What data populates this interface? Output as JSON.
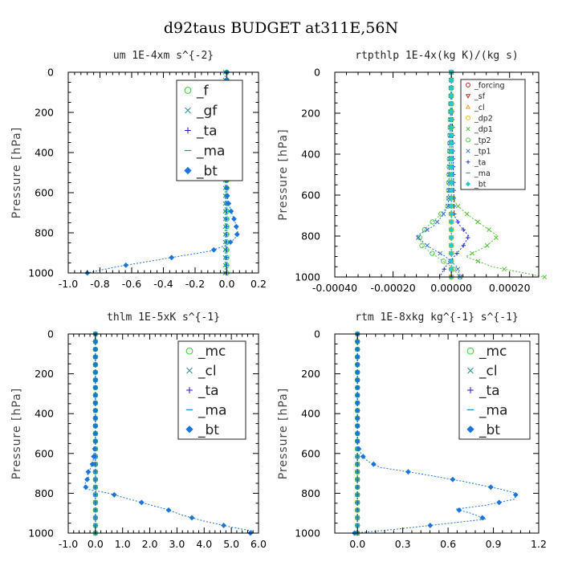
{
  "figure_title": "d92taus  BUDGET at311E,56N",
  "chart_data": [
    {
      "type": "line",
      "title": "um  1E-4xm s^{-2}",
      "ylabel": "Pressure [hPa]",
      "xlim": [
        -1.0,
        0.2
      ],
      "ylim": [
        0,
        1000
      ],
      "xticks": [
        "-1.0",
        "-0.8",
        "-0.6",
        "-0.4",
        "-0.2",
        "0.0",
        "0.2"
      ],
      "xtick_values": [
        -1.0,
        -0.8,
        -0.6,
        -0.4,
        -0.2,
        0.0,
        0.2
      ],
      "yticks": [
        "0",
        "200",
        "400",
        "600",
        "800",
        "1000"
      ],
      "ytick_values": [
        0,
        200,
        400,
        600,
        800,
        1000
      ],
      "legend_size": "large",
      "series": [
        {
          "name": "_f",
          "color": "#33cc33",
          "marker": "circle",
          "pressure": [
            0,
            1000
          ],
          "values": [
            -0.0,
            -0.0
          ]
        },
        {
          "name": "_gf",
          "color": "#2e8b8b",
          "marker": "x",
          "pressure": [
            0,
            1000
          ],
          "values": [
            -0.01,
            -0.01
          ]
        },
        {
          "name": "_ta",
          "color": "#1a1acc",
          "marker": "plus",
          "pressure": [
            0,
            1000
          ],
          "values": [
            0,
            0
          ]
        },
        {
          "name": "_ma",
          "color": "#1a8ccc",
          "marker": "dash",
          "pressure": [
            0,
            1000
          ],
          "values": [
            0,
            0
          ]
        },
        {
          "name": "_bt",
          "color": "#1a75d9",
          "marker": "diamond",
          "pressure": [
            0,
            100,
            200,
            300,
            400,
            500,
            600,
            650,
            700,
            740,
            770,
            800,
            830,
            860,
            890,
            910,
            930,
            950,
            970,
            990,
            1000
          ],
          "values": [
            0.0,
            0.0,
            0.0,
            0.0,
            0.0,
            0.0,
            0.0,
            0.01,
            0.03,
            0.05,
            0.06,
            0.07,
            0.05,
            0.0,
            -0.1,
            -0.25,
            -0.4,
            -0.55,
            -0.7,
            -0.82,
            -0.88
          ]
        }
      ]
    },
    {
      "type": "line",
      "title": "rtpthlp  1E-4x(kg K)/(kg s)",
      "ylabel": "Pressure [hPa]",
      "xlim": [
        -0.0004,
        0.0003
      ],
      "ylim": [
        0,
        1000
      ],
      "xticks": [
        "-0.00040",
        "-0.00020",
        "0.00000",
        "0.00020"
      ],
      "xtick_values": [
        -0.0004,
        -0.0002,
        0.0,
        0.0002
      ],
      "yticks": [
        "0",
        "200",
        "400",
        "600",
        "800",
        "1000"
      ],
      "ytick_values": [
        0,
        200,
        400,
        600,
        800,
        1000
      ],
      "legend_size": "small",
      "series": [
        {
          "name": "_forcing",
          "color": "#cc2222",
          "marker": "circle",
          "pressure": [
            0,
            1000
          ],
          "values": [
            0,
            0
          ]
        },
        {
          "name": "_sf",
          "color": "#cc2222",
          "marker": "triangle-down",
          "pressure": [
            0,
            1000
          ],
          "values": [
            0,
            0
          ]
        },
        {
          "name": "_cl",
          "color": "#e8a020",
          "marker": "triangle-up",
          "pressure": [
            0,
            1000
          ],
          "values": [
            0,
            0
          ]
        },
        {
          "name": "_dp2",
          "color": "#e8c020",
          "marker": "circle",
          "pressure": [
            0,
            1000
          ],
          "values": [
            0,
            0
          ]
        },
        {
          "name": "_dp1",
          "color": "#55c038",
          "marker": "x",
          "pressure": [
            0,
            600,
            650,
            700,
            750,
            800,
            850,
            900,
            950,
            1000
          ],
          "values": [
            0,
            0,
            2e-05,
            6e-05,
            0.00011,
            0.00016,
            0.00012,
            5e-05,
            0.00014,
            0.00032
          ]
        },
        {
          "name": "_tp2",
          "color": "#55cc55",
          "marker": "circle",
          "pressure": [
            0,
            650,
            700,
            750,
            800,
            850,
            900,
            950,
            1000
          ],
          "values": [
            0,
            -1e-05,
            -4e-05,
            -8e-05,
            -0.00011,
            -0.0001,
            -5e-05,
            0,
            3e-05
          ]
        },
        {
          "name": "_tp1",
          "color": "#3a6ed0",
          "marker": "x",
          "pressure": [
            0,
            650,
            700,
            750,
            800,
            850,
            900,
            950,
            1000
          ],
          "values": [
            0,
            -1e-05,
            -3e-05,
            -6e-05,
            -0.00012,
            -8e-05,
            -2e-05,
            2e-05,
            3e-05
          ]
        },
        {
          "name": "_ta",
          "color": "#2233cc",
          "marker": "plus",
          "pressure": [
            0,
            700,
            750,
            800,
            850,
            900,
            950,
            1000
          ],
          "values": [
            0,
            1e-05,
            3e-05,
            6e-05,
            4e-05,
            1e-05,
            -2e-05,
            -4e-05
          ]
        },
        {
          "name": "_ma",
          "color": "#3399cc",
          "marker": "dash",
          "pressure": [
            0,
            1000
          ],
          "values": [
            0,
            0
          ]
        },
        {
          "name": "_bt",
          "color": "#22cccc",
          "marker": "diamond",
          "pressure": [
            0,
            1000
          ],
          "values": [
            0,
            0
          ]
        }
      ]
    },
    {
      "type": "line",
      "title": "thlm  1E-5xK s^{-1}",
      "ylabel": "Pressure [hPa]",
      "xlim": [
        -1.0,
        6.0
      ],
      "ylim": [
        0,
        1000
      ],
      "xticks": [
        "-1.0",
        "0.0",
        "1.0",
        "2.0",
        "3.0",
        "4.0",
        "5.0",
        "6.0"
      ],
      "xtick_values": [
        -1.0,
        0.0,
        1.0,
        2.0,
        3.0,
        4.0,
        5.0,
        6.0
      ],
      "yticks": [
        "0",
        "200",
        "400",
        "600",
        "800",
        "1000"
      ],
      "ytick_values": [
        0,
        200,
        400,
        600,
        800,
        1000
      ],
      "legend_size": "large",
      "series": [
        {
          "name": "_mc",
          "color": "#33cc33",
          "marker": "circle",
          "pressure": [
            0,
            1000
          ],
          "values": [
            0,
            0
          ]
        },
        {
          "name": "_cl",
          "color": "#2e8b8b",
          "marker": "x",
          "pressure": [
            0,
            1000
          ],
          "values": [
            0,
            0
          ]
        },
        {
          "name": "_ta",
          "color": "#1a1acc",
          "marker": "plus",
          "pressure": [
            0,
            1000
          ],
          "values": [
            0,
            0
          ]
        },
        {
          "name": "_ma",
          "color": "#1a8ccc",
          "marker": "dash",
          "pressure": [
            0,
            1000
          ],
          "values": [
            0,
            0
          ]
        },
        {
          "name": "_bt",
          "color": "#1a75d9",
          "marker": "diamond",
          "pressure": [
            0,
            550,
            600,
            650,
            680,
            700,
            720,
            740,
            760,
            780,
            800,
            820,
            850,
            880,
            910,
            940,
            970,
            990,
            1000
          ],
          "values": [
            0,
            0,
            -0.05,
            -0.1,
            -0.2,
            -0.3,
            -0.25,
            -0.35,
            -0.4,
            -0.3,
            0.5,
            1.0,
            1.8,
            2.6,
            3.2,
            4.0,
            5.0,
            5.8,
            5.7
          ]
        }
      ]
    },
    {
      "type": "line",
      "title": "rtm  1E-8xkg kg^{-1} s^{-1}",
      "ylabel": "Pressure [hPa]",
      "xlim": [
        -0.15,
        1.2
      ],
      "ylim": [
        0,
        1000
      ],
      "xticks": [
        "0.0",
        "0.3",
        "0.6",
        "0.9",
        "1.2"
      ],
      "xtick_values": [
        0.0,
        0.3,
        0.6,
        0.9,
        1.2
      ],
      "yticks": [
        "0",
        "200",
        "400",
        "600",
        "800",
        "1000"
      ],
      "ytick_values": [
        0,
        200,
        400,
        600,
        800,
        1000
      ],
      "legend_size": "large",
      "series": [
        {
          "name": "_mc",
          "color": "#33cc33",
          "marker": "circle",
          "pressure": [
            0,
            1000
          ],
          "values": [
            0,
            0
          ]
        },
        {
          "name": "_cl",
          "color": "#2e8b8b",
          "marker": "x",
          "pressure": [
            0,
            1000
          ],
          "values": [
            0,
            0
          ]
        },
        {
          "name": "_ta",
          "color": "#1a1acc",
          "marker": "plus",
          "pressure": [
            0,
            1000
          ],
          "values": [
            0,
            0
          ]
        },
        {
          "name": "_ma",
          "color": "#1a8ccc",
          "marker": "dash",
          "pressure": [
            0,
            1000
          ],
          "values": [
            0,
            0
          ]
        },
        {
          "name": "_bt",
          "color": "#1a75d9",
          "marker": "diamond",
          "pressure": [
            0,
            550,
            580,
            610,
            640,
            670,
            700,
            740,
            780,
            800,
            830,
            860,
            880,
            900,
            930,
            960,
            985,
            1000
          ],
          "values": [
            0,
            0,
            0.01,
            0.03,
            0.07,
            0.15,
            0.4,
            0.7,
            0.95,
            1.05,
            1.04,
            0.85,
            0.65,
            0.75,
            0.85,
            0.5,
            0.2,
            -0.02
          ]
        }
      ]
    }
  ]
}
